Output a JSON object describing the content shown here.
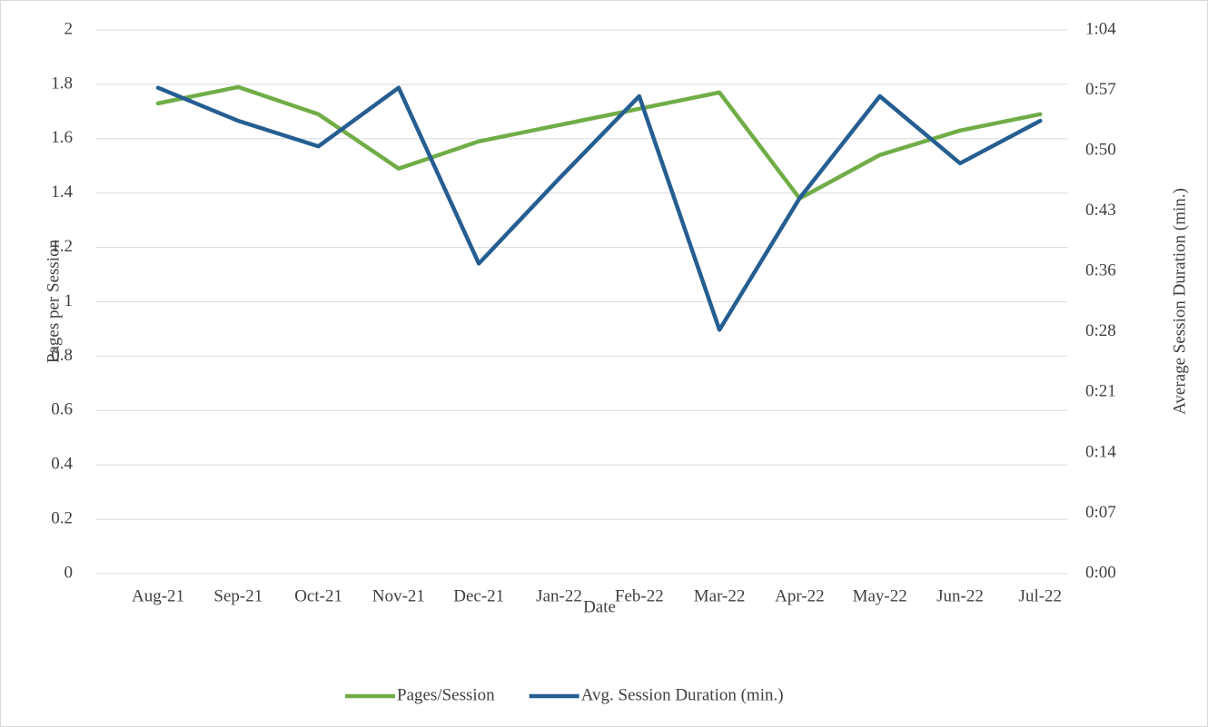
{
  "chart_data": {
    "type": "line",
    "x_label": "Date",
    "y_label": "Pages per Session",
    "y2_label": "Average Session Duration (min.)",
    "categories": [
      "Aug-21",
      "Sep-21",
      "Oct-21",
      "Nov-21",
      "Dec-21",
      "Jan-22",
      "Feb-22",
      "Mar-22",
      "Apr-22",
      "May-22",
      "Jun-22",
      "Jul-22"
    ],
    "series": [
      {
        "name": "Pages/Session",
        "color": "#70ad47",
        "values": [
          1.73,
          1.79,
          1.69,
          1.49,
          1.59,
          1.65,
          1.71,
          1.77,
          1.38,
          1.54,
          1.63,
          1.69
        ]
      },
      {
        "name": "Avg. Session Duration (min.)",
        "color": "#255e91",
        "axis": "y2",
        "values": [
          57.2,
          53.3,
          50.3,
          57.2,
          36.5,
          46.5,
          56.2,
          28.7,
          44.2,
          56.2,
          48.3,
          53.3
        ]
      }
    ],
    "ylim": [
      0,
      2
    ],
    "yticks": [
      0,
      0.2,
      0.4,
      0.6,
      0.8,
      1,
      1.2,
      1.4,
      1.6,
      1.8,
      2
    ],
    "y2lim": [
      0,
      64
    ],
    "y2ticks": [
      {
        "value": 0,
        "label": "0:00"
      },
      {
        "value": 7.11,
        "label": "0:07"
      },
      {
        "value": 14.22,
        "label": "0:14"
      },
      {
        "value": 21.33,
        "label": "0:21"
      },
      {
        "value": 28.44,
        "label": "0:28"
      },
      {
        "value": 35.56,
        "label": "0:36"
      },
      {
        "value": 42.67,
        "label": "0:43"
      },
      {
        "value": 49.78,
        "label": "0:50"
      },
      {
        "value": 56.89,
        "label": "0:57"
      },
      {
        "value": 64,
        "label": "1:04"
      }
    ],
    "grid": true,
    "legend": "bottom"
  }
}
